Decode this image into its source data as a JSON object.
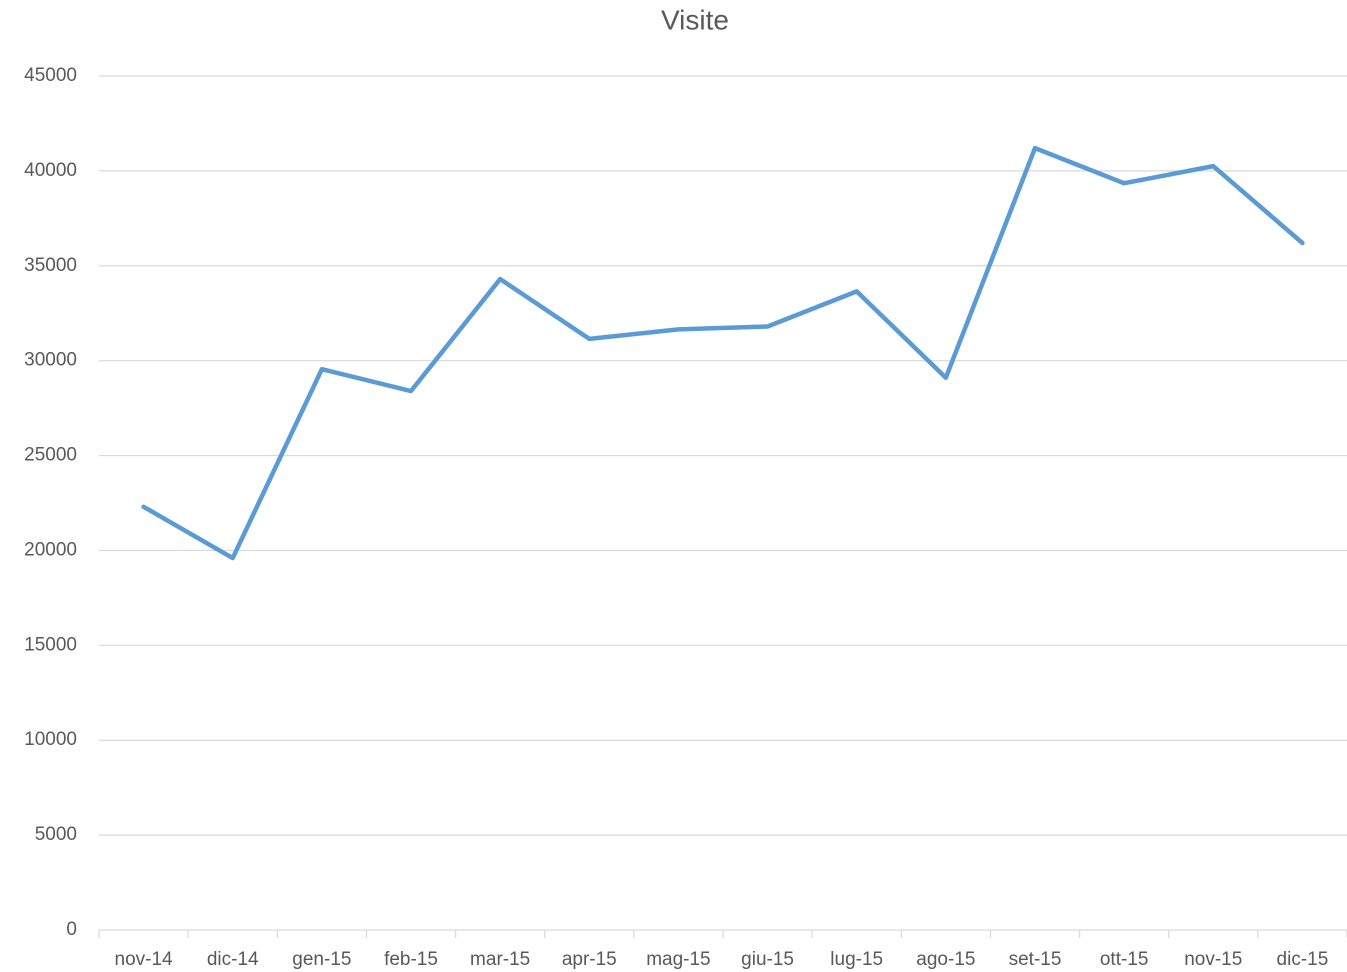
{
  "chart_data": {
    "type": "line",
    "title": "Visite",
    "categories": [
      "nov-14",
      "dic-14",
      "gen-15",
      "feb-15",
      "mar-15",
      "apr-15",
      "mag-15",
      "giu-15",
      "lug-15",
      "ago-15",
      "set-15",
      "ott-15",
      "nov-15",
      "dic-15"
    ],
    "series": [
      {
        "name": "Visite",
        "color": "#5b9bd5",
        "values": [
          22300,
          19600,
          29550,
          28400,
          34300,
          31150,
          31650,
          31800,
          33650,
          29100,
          41200,
          39350,
          40250,
          36200
        ]
      }
    ],
    "ylim": [
      0,
      45000
    ],
    "yticks": [
      0,
      5000,
      10000,
      15000,
      20000,
      25000,
      30000,
      35000,
      40000,
      45000
    ],
    "grid": true
  }
}
